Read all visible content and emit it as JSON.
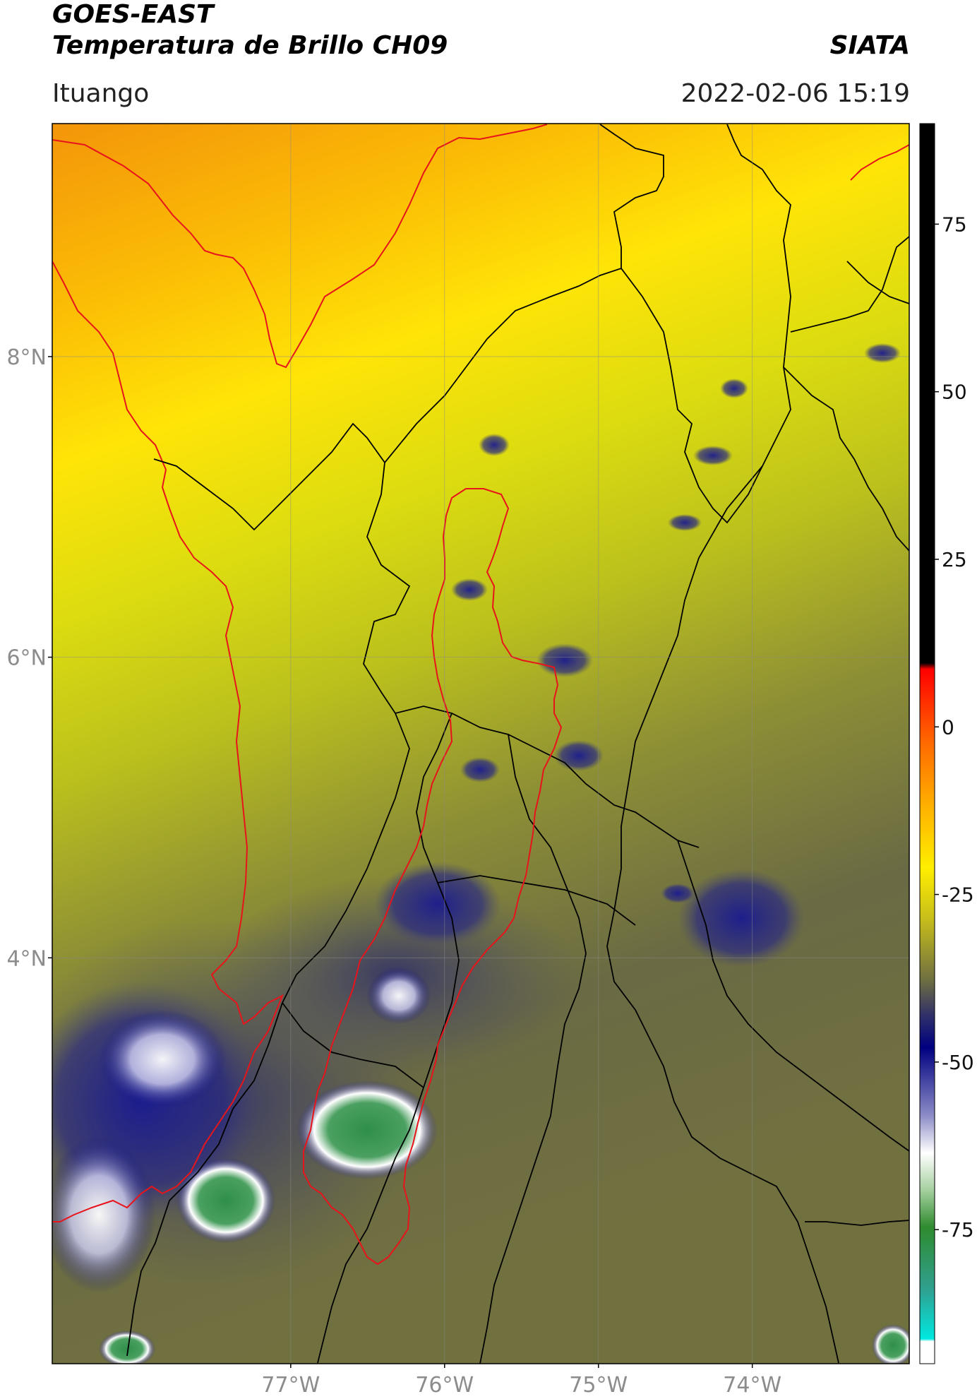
{
  "header": {
    "title_line1": "GOES-EAST",
    "title_line2": "Temperatura de Brillo CH09",
    "brand": "SIATA",
    "location": "Ituango",
    "datetime": "2022-02-06 15:19"
  },
  "map": {
    "lat_range": [
      1.3,
      9.55
    ],
    "lon_range": [
      -78.55,
      -72.98
    ],
    "lat_ticks": [
      {
        "value": 8,
        "label": "8°N"
      },
      {
        "value": 6,
        "label": "6°N"
      },
      {
        "value": 4,
        "label": "4°N"
      }
    ],
    "lon_ticks": [
      {
        "value": -77,
        "label": "77°W"
      },
      {
        "value": -76,
        "label": "76°W"
      },
      {
        "value": -75,
        "label": "75°W"
      },
      {
        "value": -74,
        "label": "74°W"
      }
    ],
    "grid": true,
    "colors": {
      "coastline": "#e8141b",
      "departments": "#000000",
      "basin": "#e8141b"
    }
  },
  "colorbar": {
    "range": [
      -95,
      90
    ],
    "ticks": [
      {
        "value": 75,
        "label": "75"
      },
      {
        "value": 50,
        "label": "50"
      },
      {
        "value": 25,
        "label": "25"
      },
      {
        "value": 0,
        "label": "0"
      },
      {
        "value": -25,
        "label": "-25"
      },
      {
        "value": -50,
        "label": "-50"
      },
      {
        "value": -75,
        "label": "-75"
      }
    ]
  }
}
